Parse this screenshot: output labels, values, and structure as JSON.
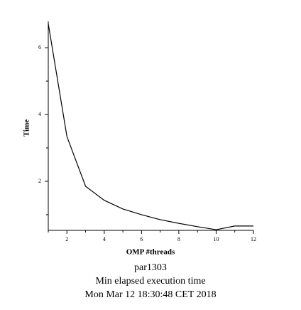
{
  "chart_data": {
    "type": "line",
    "ylabel": "Time",
    "xlabel": "OMP #threads",
    "caption": [
      "par1303",
      "Min elapsed execution time",
      "Mon Mar 12 18:30:48 CET 2018"
    ],
    "x": [
      1,
      2,
      3,
      4,
      5,
      6,
      7,
      8,
      9,
      10,
      11,
      12
    ],
    "series": [
      {
        "color": "#000000",
        "values": [
          6.72,
          3.34,
          1.85,
          1.43,
          1.17,
          1.0,
          0.85,
          0.74,
          0.64,
          0.55,
          0.66,
          0.66
        ]
      }
    ],
    "xlim": [
      1,
      12
    ],
    "xticks": [
      2,
      4,
      6,
      8,
      10,
      12
    ],
    "xminor": [
      1,
      3,
      5,
      7,
      9,
      11
    ],
    "ylim": [
      0.53,
      6.79
    ],
    "yticks": [
      2,
      4,
      6
    ],
    "yminor": [
      1,
      3,
      5
    ],
    "grid": false
  }
}
